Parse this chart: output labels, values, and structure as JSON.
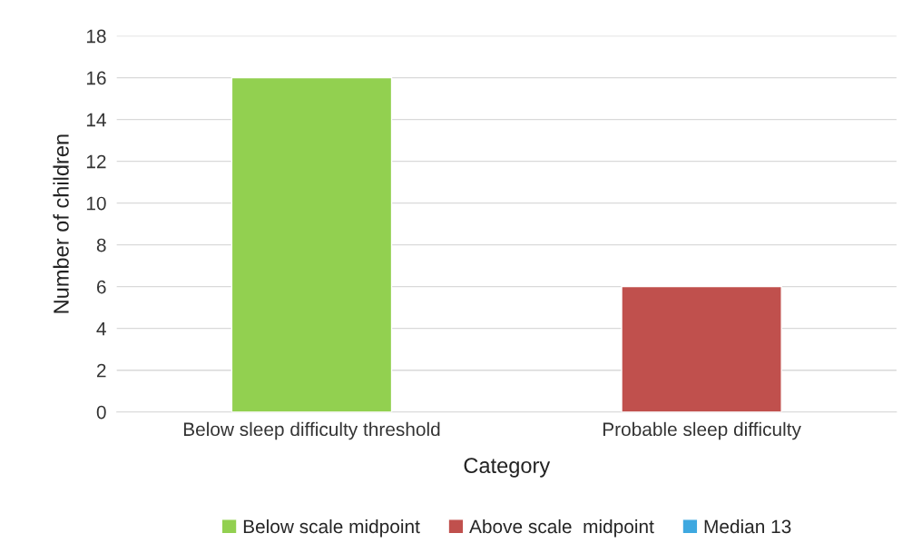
{
  "chart_data": {
    "type": "bar",
    "xlabel": "Category",
    "ylabel": "Number of children",
    "categories": [
      "Below sleep difficulty threshold",
      "Probable sleep difficulty"
    ],
    "stacked": true,
    "series": [
      {
        "name": "Below scale midpoint",
        "color": "#92d050",
        "values": [
          16,
          null
        ]
      },
      {
        "name": "Above scale  midpoint",
        "color": "#c0504d",
        "values": [
          null,
          6
        ]
      },
      {
        "name": "Median 13",
        "color": "#3ea8e0",
        "values": [
          null,
          null
        ]
      }
    ],
    "ylim": [
      0,
      18
    ],
    "yticks": [
      0,
      2,
      4,
      6,
      8,
      10,
      12,
      14,
      16,
      18
    ],
    "grid": "y",
    "legend": "bottom"
  }
}
